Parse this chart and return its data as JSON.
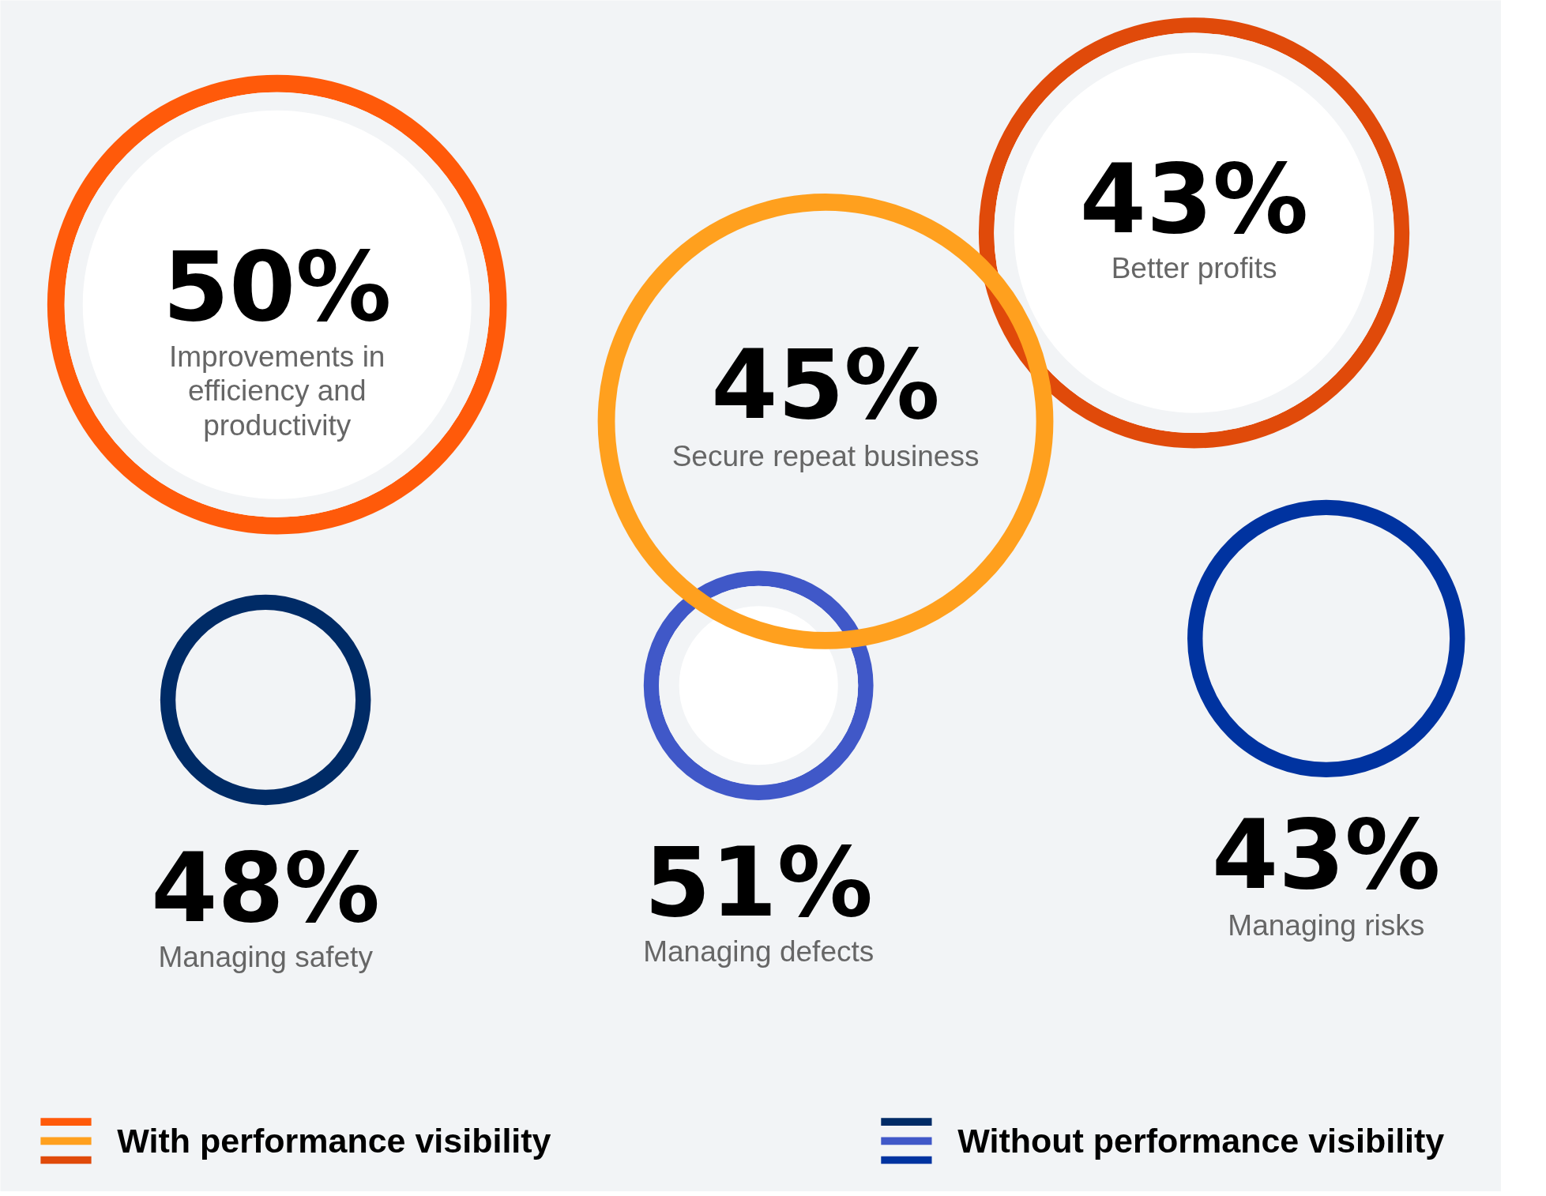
{
  "chart_data": {
    "type": "other",
    "legend": "bottom",
    "categories": [
      "Improvements in efficiency and productivity",
      "Secure repeat business",
      "Better profits",
      "Managing safety",
      "Managing defects",
      "Managing risks"
    ],
    "series": [
      {
        "name": "With performance visibility",
        "values": [
          50,
          45,
          43,
          null,
          null,
          null
        ],
        "value_labels": [
          "50%",
          "45%",
          "43%",
          null,
          null,
          null
        ],
        "colors": [
          "#ff5a0a",
          "#ffa01e",
          "#e04a0a",
          null,
          null,
          null
        ]
      },
      {
        "name": "Without performance visibility",
        "values": [
          null,
          null,
          null,
          48,
          51,
          43
        ],
        "value_labels": [
          null,
          null,
          null,
          "48%",
          "51%",
          "43%"
        ],
        "colors": [
          null,
          null,
          null,
          "#002b66",
          "#4058c8",
          "#0033a0"
        ]
      }
    ]
  }
}
